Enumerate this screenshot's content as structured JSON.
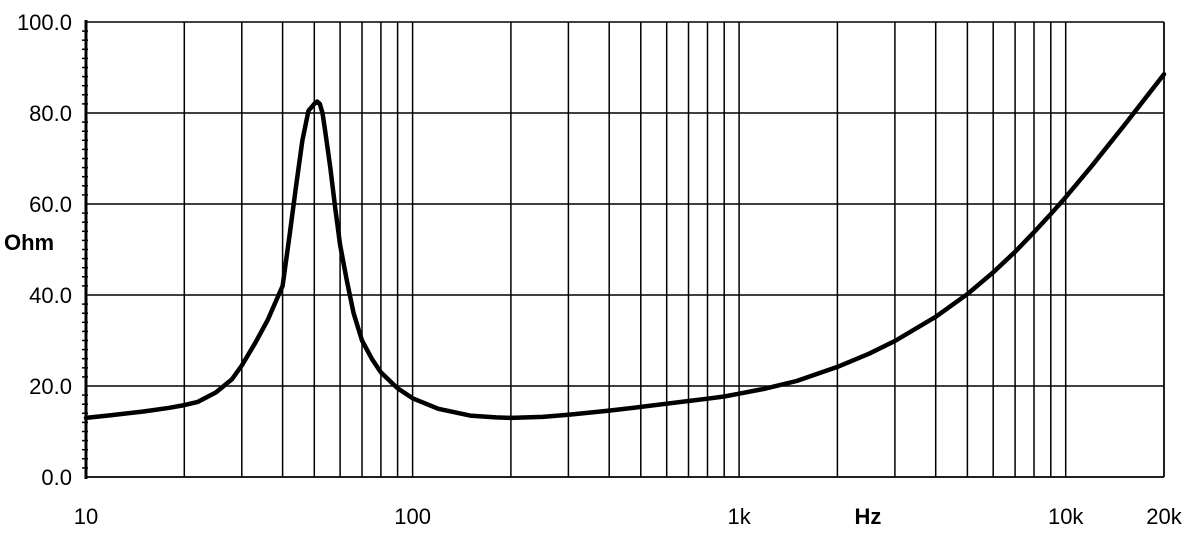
{
  "chart_data": {
    "type": "line",
    "title": "",
    "xlabel": "Hz",
    "ylabel": "Ohm",
    "x_scale": "log",
    "xlim": [
      10,
      20000
    ],
    "ylim": [
      0,
      100
    ],
    "grid": true,
    "x_ticks": [
      {
        "value": 10,
        "label": "10"
      },
      {
        "value": 100,
        "label": "100"
      },
      {
        "value": 1000,
        "label": "1k"
      },
      {
        "value": 10000,
        "label": "10k"
      },
      {
        "value": 20000,
        "label": "20k"
      }
    ],
    "y_ticks": [
      {
        "value": 0,
        "label": "0.0"
      },
      {
        "value": 20,
        "label": "20.0"
      },
      {
        "value": 40,
        "label": "40.0"
      },
      {
        "value": 60,
        "label": "60.0"
      },
      {
        "value": 80,
        "label": "80.0"
      },
      {
        "value": 100,
        "label": "100.0"
      }
    ],
    "series": [
      {
        "name": "",
        "x": [
          10,
          12,
          15,
          18,
          20,
          22,
          25,
          28,
          30,
          33,
          36,
          40,
          42,
          44,
          46,
          48,
          50,
          51,
          52,
          53,
          54,
          56,
          58,
          60,
          63,
          66,
          70,
          75,
          80,
          90,
          100,
          120,
          150,
          180,
          200,
          250,
          300,
          400,
          500,
          600,
          700,
          800,
          900,
          1000,
          1200,
          1500,
          2000,
          2500,
          3000,
          4000,
          5000,
          6000,
          7000,
          8000,
          9000,
          10000,
          12000,
          15000,
          20000
        ],
        "y": [
          13,
          13.6,
          14.4,
          15.2,
          15.8,
          16.5,
          18.6,
          21.5,
          24.5,
          29.5,
          34.5,
          42,
          53,
          64,
          74,
          80.5,
          82,
          82.5,
          82,
          80,
          76,
          68,
          59,
          51,
          43,
          36,
          30,
          26,
          23,
          19.5,
          17.3,
          15,
          13.5,
          13.1,
          13,
          13.2,
          13.7,
          14.6,
          15.4,
          16.1,
          16.7,
          17.2,
          17.7,
          18.3,
          19.4,
          21.1,
          24.2,
          27.1,
          29.9,
          35.2,
          40.2,
          45,
          49.5,
          53.8,
          57.8,
          61.5,
          68.3,
          77,
          88.5
        ]
      }
    ]
  }
}
